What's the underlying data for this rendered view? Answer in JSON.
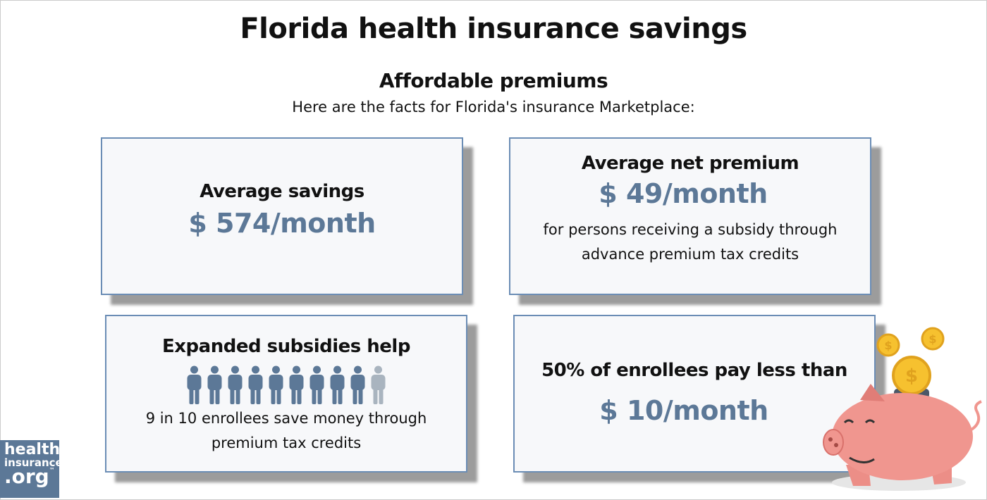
{
  "header": {
    "title": "Florida health insurance savings",
    "subtitle": "Affordable premiums",
    "intro": "Here are the facts for Florida's insurance Marketplace:"
  },
  "cards": [
    {
      "heading": "Average savings",
      "amount": "$ 574/month"
    },
    {
      "heading": "Average net premium",
      "amount": "$ 49/month",
      "note": "for persons receiving a subsidy through advance premium tax credits"
    },
    {
      "heading": "Expanded subsidies help",
      "people": {
        "filled": 9,
        "total": 10
      },
      "note": "9 in 10 enrollees save money through premium tax credits"
    },
    {
      "heading": "50% of enrollees pay less than",
      "amount": "$ 10/month"
    }
  ],
  "logo": {
    "line1": "health",
    "line2": "insurance",
    "line3": ".org",
    "mark": "™"
  }
}
